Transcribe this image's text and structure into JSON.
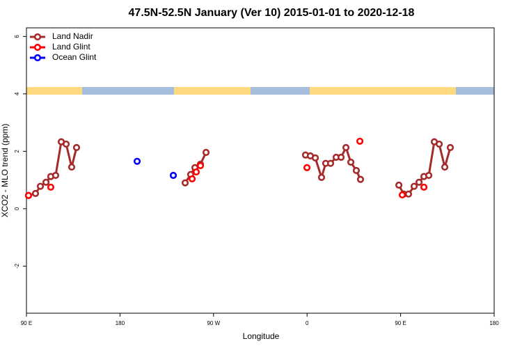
{
  "chart_data": {
    "type": "line",
    "title": "47.5N-52.5N January (Ver 10)   2015-01-01 to 2020-12-18",
    "x_label": "Longitude",
    "y_label": "XCO2 - MLO trend (ppm)",
    "xlim": [
      90,
      540
    ],
    "xticks": [
      {
        "value": 90,
        "label": "90 E"
      },
      {
        "value": 180,
        "label": "180"
      },
      {
        "value": 270,
        "label": "90 W"
      },
      {
        "value": 360,
        "label": "0"
      },
      {
        "value": 450,
        "label": "90 E"
      },
      {
        "value": 540,
        "label": "180"
      }
    ],
    "ylim": [
      -3.64,
      6.3
    ],
    "yticks": [
      -2,
      0,
      2,
      4,
      6
    ],
    "legend": "top-left",
    "series": [
      {
        "name": "Land Nadir",
        "color": "#a52a2a",
        "x": [
          92.0,
          98.7,
          103.4,
          108.8,
          113.4,
          118.1,
          123.5,
          128.2,
          133.5,
          138.2,
          null,
          242.7,
          248.0,
          252.1,
          257.4,
          262.8,
          null,
          358.5,
          363.2,
          367.9,
          373.9,
          377.9,
          382.6,
          388.0,
          392.7,
          397.4,
          402.1,
          407.4,
          411.4,
          null,
          448.3,
          453.0,
          457.6,
          463.0,
          467.7,
          472.4,
          477.1,
          482.4,
          487.1,
          492.5,
          497.8
        ],
        "values": [
          0.46,
          0.53,
          0.78,
          0.92,
          1.12,
          1.16,
          2.33,
          2.25,
          1.45,
          2.13,
          null,
          0.9,
          1.19,
          1.43,
          1.55,
          1.96,
          null,
          1.87,
          1.84,
          1.77,
          1.09,
          1.58,
          1.58,
          1.79,
          1.79,
          2.13,
          1.62,
          1.33,
          1.02,
          null,
          0.82,
          0.51,
          0.51,
          0.78,
          0.92,
          1.12,
          1.16,
          2.33,
          2.25,
          1.45,
          2.13
        ]
      },
      {
        "name": "Land Glint",
        "color": "#ff0000",
        "x": [
          92.0,
          null,
          113.4,
          null,
          249.4,
          null,
          253.4,
          null,
          257.4,
          null,
          359.9,
          null,
          410.8,
          null,
          451.6,
          null,
          472.4
        ],
        "values": [
          0.46,
          null,
          0.75,
          null,
          1.04,
          null,
          1.28,
          null,
          1.5,
          null,
          1.43,
          null,
          2.35,
          null,
          0.48,
          null,
          0.75
        ]
      },
      {
        "name": "Ocean Glint",
        "color": "#0000ff",
        "x": [
          196.5,
          null,
          231.3
        ],
        "values": [
          1.65,
          null,
          1.16
        ]
      }
    ]
  }
}
